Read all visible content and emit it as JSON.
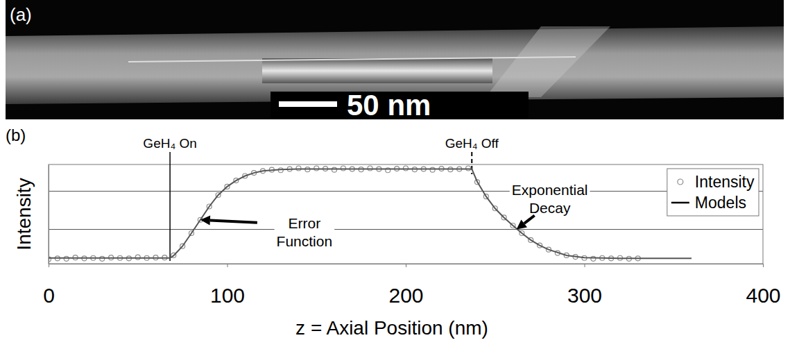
{
  "panel_a": {
    "label": "(a)",
    "scale_bar": "50 nm"
  },
  "chart_data": {
    "type": "scatter",
    "panel_label": "(b)",
    "x_label": "z = Axial Position (nm)",
    "y_label": "Intensity",
    "xlim": [
      0,
      400
    ],
    "xticks": [
      0,
      100,
      200,
      300,
      400
    ],
    "ylim": [
      0.1,
      2.7
    ],
    "yticks": [
      1,
      2
    ],
    "grid": true,
    "tick_labels": "x",
    "legend": "upper right",
    "series": [
      {
        "name": "Intensity",
        "type": "scatter",
        "color": "#8c8c8c",
        "marker": "circle",
        "x": [
          0,
          5,
          10,
          15,
          20,
          25,
          30,
          35,
          40,
          45,
          50,
          55,
          60,
          65,
          70,
          75,
          80,
          85,
          90,
          95,
          100,
          105,
          110,
          115,
          120,
          125,
          130,
          135,
          140,
          145,
          150,
          155,
          160,
          165,
          170,
          175,
          180,
          185,
          190,
          195,
          200,
          205,
          210,
          215,
          220,
          225,
          230,
          235,
          240,
          245,
          250,
          255,
          260,
          265,
          270,
          275,
          280,
          285,
          290,
          295,
          300,
          305,
          310,
          315,
          320,
          325,
          330
        ],
        "values": [
          0.22,
          0.24,
          0.23,
          0.26,
          0.24,
          0.25,
          0.23,
          0.26,
          0.25,
          0.24,
          0.27,
          0.25,
          0.26,
          0.26,
          0.32,
          0.56,
          0.9,
          1.25,
          1.6,
          1.9,
          2.12,
          2.28,
          2.4,
          2.48,
          2.53,
          2.56,
          2.55,
          2.58,
          2.6,
          2.57,
          2.6,
          2.59,
          2.56,
          2.6,
          2.58,
          2.57,
          2.6,
          2.58,
          2.55,
          2.59,
          2.6,
          2.57,
          2.58,
          2.56,
          2.59,
          2.57,
          2.58,
          2.6,
          2.24,
          1.86,
          1.55,
          1.31,
          1.1,
          0.9,
          0.72,
          0.58,
          0.47,
          0.38,
          0.32,
          0.28,
          0.25,
          0.23,
          0.25,
          0.24,
          0.25,
          0.23,
          0.24
        ]
      },
      {
        "name": "Models",
        "type": "line",
        "color": "#555555",
        "line_style": "solid",
        "x": [
          0,
          68,
          70,
          75,
          80,
          85,
          90,
          95,
          100,
          105,
          110,
          115,
          120,
          130,
          140,
          237,
          240,
          245,
          250,
          255,
          260,
          265,
          270,
          275,
          280,
          290,
          300,
          320,
          360
        ],
        "values": [
          0.25,
          0.25,
          0.31,
          0.56,
          0.9,
          1.25,
          1.6,
          1.9,
          2.12,
          2.28,
          2.4,
          2.48,
          2.53,
          2.57,
          2.58,
          2.58,
          2.25,
          1.86,
          1.55,
          1.31,
          1.1,
          0.9,
          0.72,
          0.58,
          0.47,
          0.32,
          0.26,
          0.24,
          0.24
        ]
      }
    ],
    "annotations": [
      {
        "text": "GeH₄ On",
        "x": 68,
        "line_style": "solid"
      },
      {
        "text": "GeH₄ Off",
        "x": 237,
        "line_style": "dashed"
      },
      {
        "text": "Error Function",
        "x": 85,
        "y": 1.25
      },
      {
        "text": "Exponential Decay",
        "x": 262,
        "y": 1.0
      }
    ]
  }
}
